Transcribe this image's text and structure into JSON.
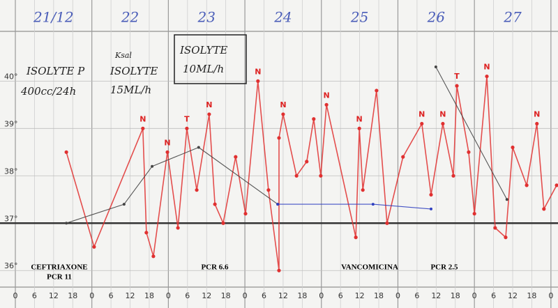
{
  "chart_data": {
    "type": "line",
    "day_labels": [
      "21/12",
      "22",
      "23",
      "24",
      "25",
      "26",
      "27"
    ],
    "xlim": [
      0,
      170
    ],
    "xticks": [
      0,
      6,
      12,
      18,
      {
        "value": 24,
        "label": "0"
      },
      {
        "value": 30,
        "label": "6"
      },
      {
        "value": 36,
        "label": "12"
      },
      {
        "value": 42,
        "label": "18"
      },
      {
        "value": 48,
        "label": "0"
      },
      {
        "value": 54,
        "label": "6"
      },
      {
        "value": 60,
        "label": "12"
      },
      {
        "value": 66,
        "label": "18"
      },
      {
        "value": 72,
        "label": "0"
      },
      {
        "value": 78,
        "label": "6"
      },
      {
        "value": 84,
        "label": "12"
      },
      {
        "value": 90,
        "label": "18"
      },
      {
        "value": 96,
        "label": "0"
      },
      {
        "value": 102,
        "label": "6"
      },
      {
        "value": 108,
        "label": "12"
      },
      {
        "value": 114,
        "label": "18"
      },
      {
        "value": 120,
        "label": "0"
      },
      {
        "value": 126,
        "label": "6"
      },
      {
        "value": 132,
        "label": "12"
      },
      {
        "value": 138,
        "label": "18"
      },
      {
        "value": 144,
        "label": "0"
      },
      {
        "value": 150,
        "label": "6"
      },
      {
        "value": 156,
        "label": "12"
      },
      {
        "value": 162,
        "label": "18"
      },
      {
        "value": 168,
        "label": "0"
      }
    ],
    "ylim": [
      35.65,
      41.05
    ],
    "yticks": [
      {
        "value": 36,
        "label": "36°"
      },
      {
        "value": 37,
        "label": "37°"
      },
      {
        "value": 38,
        "label": "38°"
      },
      {
        "value": 39,
        "label": "39°"
      },
      {
        "value": 40,
        "label": "40°"
      }
    ],
    "grid": true,
    "reference_line": 37,
    "series": [
      {
        "color": "#e03030",
        "x": [
          16.0,
          24.7,
          40.0,
          41.1,
          43.3,
          47.7,
          51.0,
          53.8,
          56.9,
          60.8,
          62.6,
          65.2,
          69.1,
          72.2,
          76.1,
          79.4,
          82.7,
          82.7,
          84.0,
          88.2,
          91.4,
          93.6,
          95.8,
          97.6,
          106.8,
          107.9,
          109.0,
          113.3,
          116.6,
          121.6,
          127.5,
          130.4,
          134.1,
          137.4,
          138.5,
          142.2,
          144.0,
          147.9,
          150.5,
          153.8,
          156.0,
          160.4,
          163.6,
          165.8,
          169.8
        ],
        "values": [
          38.5,
          36.5,
          39.0,
          36.8,
          36.3,
          38.5,
          36.9,
          39.0,
          37.7,
          39.3,
          37.4,
          37.0,
          38.4,
          37.2,
          40.0,
          37.7,
          36.0,
          38.8,
          39.3,
          38.0,
          38.3,
          39.2,
          38.0,
          39.5,
          36.7,
          39.0,
          37.7,
          39.8,
          37.0,
          38.4,
          39.1,
          37.6,
          39.1,
          38.0,
          39.9,
          38.5,
          37.2,
          40.1,
          36.9,
          36.7,
          38.6,
          37.8,
          39.1,
          37.3,
          37.8
        ],
        "point_labels": [
          null,
          null,
          "N",
          null,
          null,
          "N",
          null,
          "T",
          null,
          "N",
          null,
          null,
          null,
          null,
          "N",
          null,
          null,
          null,
          "N",
          null,
          null,
          null,
          null,
          "N",
          null,
          "N",
          null,
          null,
          null,
          null,
          "N",
          null,
          "N",
          null,
          "T",
          null,
          null,
          "N",
          null,
          null,
          null,
          null,
          "N",
          null,
          null
        ]
      },
      {
        "color": "#444444",
        "x": [
          16.0,
          34.1,
          42.9,
          57.5,
          82.3,
          null,
          131.9,
          154.2
        ],
        "values": [
          37.0,
          37.4,
          38.2,
          38.6,
          37.4,
          null,
          40.3,
          37.5
        ]
      },
      {
        "color": "#3040c0",
        "x": [
          82.3,
          112.2,
          130.4
        ],
        "values": [
          37.4,
          37.4,
          37.3
        ]
      }
    ],
    "annotations": [
      "CEFTRIAXONE",
      "PCR 11",
      "PCR 6.6",
      "VANCOMICINA",
      "PCR 2.5"
    ],
    "notes": [
      "ISOLYTE P",
      "400cc/24h",
      "Ksal",
      "ISOLYTE",
      "15ML/h",
      "ISOLYTE",
      "10ML/h"
    ]
  }
}
